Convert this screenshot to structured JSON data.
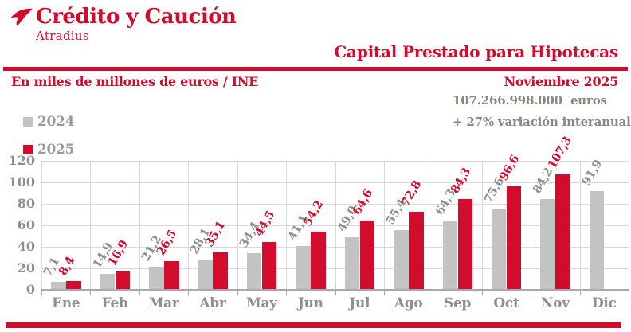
{
  "brand": {
    "name": "Crédito y Caución",
    "subname": "Atradius"
  },
  "header": {
    "title": "Capital Prestado para Hipotecas",
    "units_label": "En miles de millones de euros / INE",
    "date_label": "Noviembre 2025"
  },
  "stats": {
    "amount": "107.266.998.000  euros",
    "variation": "+ 27% variación interanual"
  },
  "legend": [
    {
      "label": "2024",
      "color": "#c3c3c3"
    },
    {
      "label": "2025",
      "color": "#d30b2c"
    }
  ],
  "colors": {
    "accent": "#d30b2c",
    "bar_gray": "#c3c3c3",
    "label_gray": "#8f8f8f",
    "grid": "#dadada",
    "axis": "#a9a9a9"
  },
  "chart_data": {
    "type": "bar",
    "title": "Capital Prestado para Hipotecas",
    "xlabel": "",
    "ylabel": "En miles de millones de euros",
    "ylim": [
      0,
      120
    ],
    "yticks": [
      0,
      20,
      40,
      60,
      80,
      100,
      120
    ],
    "grid": true,
    "legend_position": "top-left",
    "categories": [
      "Ene",
      "Feb",
      "Mar",
      "Abr",
      "May",
      "Jun",
      "Jul",
      "Ago",
      "Sep",
      "Oct",
      "Nov",
      "Dic"
    ],
    "series": [
      {
        "name": "2024",
        "color": "#c3c3c3",
        "label_color": "#8f8f8f",
        "values": [
          7.1,
          14.9,
          21.2,
          28.1,
          34.4,
          41.1,
          49.0,
          55.4,
          64.3,
          75.6,
          84.2,
          91.9
        ],
        "labels": [
          "7,1",
          "14,9",
          "21,2",
          "28,1",
          "34,4",
          "41,1",
          "49,0",
          "55,4",
          "64,3",
          "75,6",
          "84,2",
          "91,9"
        ]
      },
      {
        "name": "2025",
        "color": "#d30b2c",
        "label_color": "#d30b2c",
        "values": [
          8.4,
          16.9,
          26.5,
          35.1,
          44.5,
          54.2,
          64.6,
          72.8,
          84.3,
          96.6,
          107.3,
          null
        ],
        "labels": [
          "8,4",
          "16,9",
          "26,5",
          "35,1",
          "44,5",
          "54,2",
          "64,6",
          "72,8",
          "84,3",
          "96,6",
          "107,3",
          ""
        ]
      }
    ]
  }
}
